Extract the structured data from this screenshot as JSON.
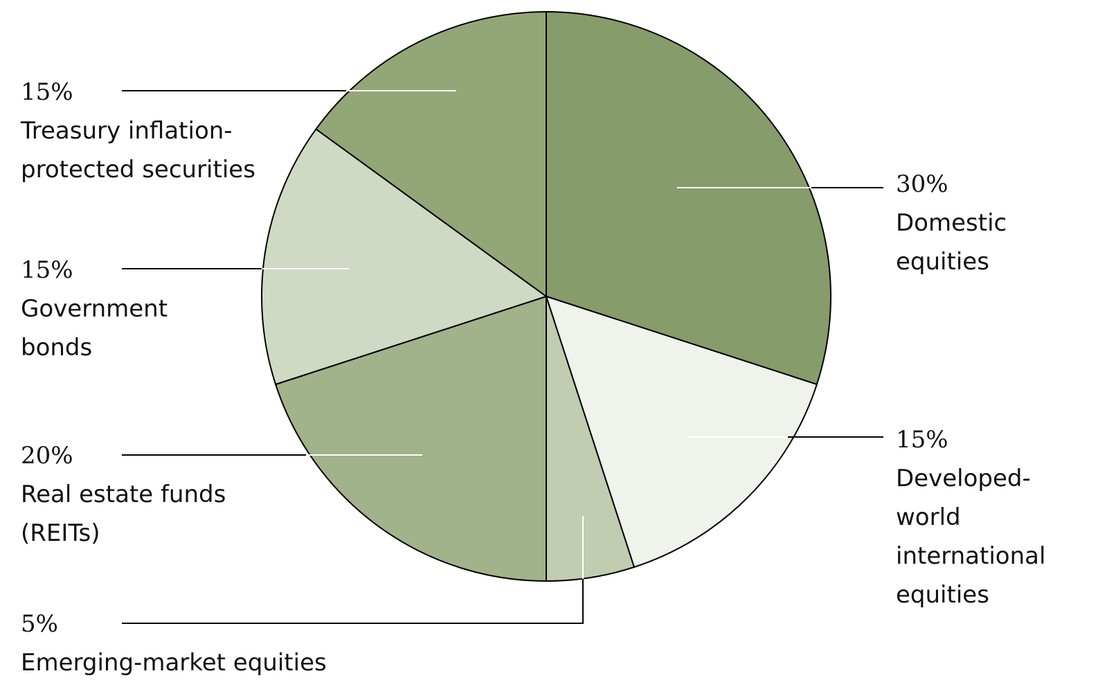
{
  "chart_data": {
    "type": "pie",
    "title": "",
    "slices": [
      {
        "label_lines": [
          "Domestic",
          "equities"
        ],
        "percent_label": "30%",
        "value": 30,
        "color": "#869c6a"
      },
      {
        "label_lines": [
          "Developed-",
          "world",
          "international",
          "equities"
        ],
        "percent_label": "15%",
        "value": 15,
        "color": "#f0f3eb"
      },
      {
        "label_lines": [
          "Emerging-market equities"
        ],
        "percent_label": "5%",
        "value": 5,
        "color": "#c1ccb0"
      },
      {
        "label_lines": [
          "Real estate funds",
          "(REITs)"
        ],
        "percent_label": "20%",
        "value": 20,
        "color": "#a2b28a"
      },
      {
        "label_lines": [
          "Government",
          "bonds"
        ],
        "percent_label": "15%",
        "value": 15,
        "color": "#d0d9c3"
      },
      {
        "label_lines": [
          "Treasury inflation-",
          "protected securities"
        ],
        "percent_label": "15%",
        "value": 15,
        "color": "#93a678"
      }
    ]
  }
}
